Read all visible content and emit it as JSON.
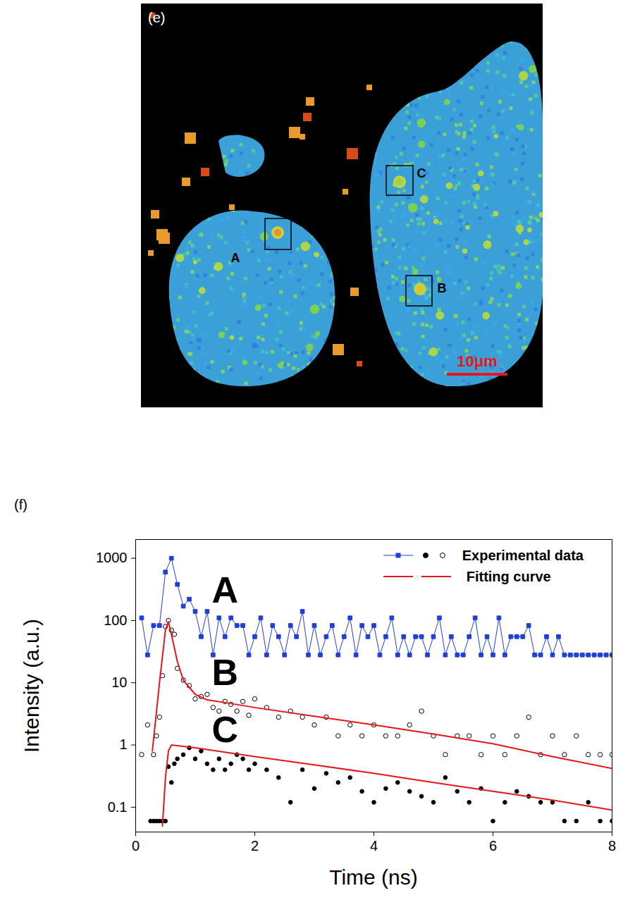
{
  "image_panel": {
    "label": "(e)",
    "regions": [
      "A",
      "B",
      "C"
    ],
    "scale_bar": "10μm"
  },
  "chart_data": {
    "type": "scatter",
    "panel_label": "(f)",
    "x_label": "Time (ns)",
    "y_label": "Intensity (a.u.)",
    "log": "y",
    "xlim": [
      0,
      8
    ],
    "ylim": [
      0.04,
      2000
    ],
    "xticks": [
      0,
      2,
      4,
      6,
      8
    ],
    "yticks": [
      0.1,
      1,
      10,
      100,
      1000
    ],
    "legend": "top-right",
    "annotations": [
      {
        "text": "A",
        "x": 1.5,
        "y": 300
      },
      {
        "text": "B",
        "x": 1.5,
        "y": 14
      },
      {
        "text": "C",
        "x": 1.5,
        "y": 1.7
      }
    ],
    "series": [
      {
        "name": "Experimental data",
        "color": "#1f3fd6",
        "marker": "square",
        "line_style": "solid",
        "x": [
          0.1,
          0.2,
          0.3,
          0.4,
          0.5,
          0.6,
          0.7,
          0.8,
          0.9,
          1.0,
          1.1,
          1.2,
          1.3,
          1.4,
          1.5,
          1.6,
          1.7,
          1.8,
          1.9,
          2.0,
          2.1,
          2.2,
          2.3,
          2.4,
          2.5,
          2.6,
          2.7,
          2.8,
          2.9,
          3.0,
          3.1,
          3.2,
          3.3,
          3.4,
          3.5,
          3.6,
          3.7,
          3.8,
          3.9,
          4.0,
          4.1,
          4.2,
          4.3,
          4.4,
          4.5,
          4.6,
          4.7,
          4.8,
          4.9,
          5.0,
          5.1,
          5.2,
          5.3,
          5.4,
          5.5,
          5.6,
          5.7,
          5.8,
          5.9,
          6.0,
          6.1,
          6.2,
          6.3,
          6.4,
          6.5,
          6.6,
          6.7,
          6.8,
          6.9,
          7.0,
          7.1,
          7.2,
          7.3,
          7.4,
          7.5,
          7.6,
          7.7,
          7.8,
          7.9,
          8.0
        ],
        "values": [
          110,
          28,
          83,
          83,
          600,
          1000,
          380,
          170,
          220,
          140,
          55,
          140,
          28,
          110,
          55,
          110,
          83,
          83,
          28,
          55,
          110,
          28,
          83,
          55,
          28,
          83,
          55,
          140,
          28,
          83,
          28,
          55,
          83,
          28,
          55,
          110,
          28,
          83,
          55,
          83,
          28,
          55,
          110,
          28,
          55,
          28,
          55,
          55,
          28,
          55,
          110,
          28,
          55,
          28,
          28,
          55,
          110,
          28,
          55,
          28,
          110,
          28,
          55,
          55,
          55,
          83,
          28,
          28,
          55,
          28,
          55,
          28,
          28,
          28,
          28,
          28,
          28,
          28,
          28,
          28
        ]
      },
      {
        "name": "Experimental data",
        "color": "#000000",
        "marker": "circle",
        "line_style": "none",
        "x": [
          0.25,
          0.3,
          0.35,
          0.4,
          0.45,
          0.5,
          0.55,
          0.6,
          0.65,
          0.7,
          0.8,
          0.9,
          1.0,
          1.1,
          1.2,
          1.3,
          1.4,
          1.5,
          1.6,
          1.7,
          1.8,
          1.9,
          2.0,
          2.2,
          2.4,
          2.6,
          2.8,
          3.0,
          3.2,
          3.4,
          3.6,
          3.8,
          4.0,
          4.2,
          4.4,
          4.6,
          4.8,
          5.0,
          5.2,
          5.4,
          5.6,
          5.8,
          6.0,
          6.2,
          6.4,
          6.6,
          6.8,
          7.0,
          7.2,
          7.4,
          7.6,
          7.8,
          8.0
        ],
        "values": [
          0.06,
          0.06,
          0.06,
          0.06,
          0.06,
          0.06,
          0.45,
          0.25,
          0.5,
          0.6,
          0.7,
          0.9,
          0.6,
          0.8,
          0.5,
          0.4,
          0.6,
          0.4,
          0.5,
          0.7,
          0.6,
          0.4,
          0.5,
          0.4,
          0.3,
          0.12,
          0.4,
          0.2,
          0.35,
          0.25,
          0.3,
          0.18,
          0.12,
          0.2,
          0.25,
          0.18,
          0.15,
          0.12,
          0.3,
          0.18,
          0.12,
          0.2,
          0.06,
          0.12,
          0.18,
          0.15,
          0.12,
          0.12,
          0.06,
          0.06,
          0.12,
          0.06,
          0.06
        ]
      },
      {
        "name": "Experimental data",
        "color": "#000000",
        "marker": "circle-open",
        "line_style": "none",
        "x": [
          0.1,
          0.2,
          0.3,
          0.35,
          0.4,
          0.45,
          0.5,
          0.55,
          0.6,
          0.65,
          0.7,
          0.8,
          0.9,
          1.0,
          1.1,
          1.2,
          1.3,
          1.4,
          1.5,
          1.6,
          1.7,
          1.8,
          1.9,
          2.0,
          2.2,
          2.4,
          2.6,
          2.8,
          3.0,
          3.2,
          3.4,
          3.6,
          3.8,
          4.0,
          4.2,
          4.4,
          4.6,
          4.8,
          5.0,
          5.2,
          5.4,
          5.6,
          5.8,
          6.0,
          6.2,
          6.4,
          6.6,
          6.8,
          7.0,
          7.2,
          7.4,
          7.6,
          7.8,
          8.0
        ],
        "values": [
          0.7,
          2.1,
          0.7,
          1.4,
          2.8,
          13,
          80,
          100,
          70,
          60,
          17,
          11,
          9,
          5.5,
          6,
          6.5,
          4,
          3.5,
          5,
          4.5,
          3.5,
          5,
          3,
          5.5,
          4,
          2.8,
          3.5,
          2.8,
          2.1,
          2.8,
          1.4,
          2.1,
          1.4,
          2.1,
          1.4,
          1.4,
          2.1,
          3.5,
          1.4,
          0.7,
          1.4,
          1.4,
          0.7,
          1.4,
          0.7,
          1.4,
          2.8,
          0.7,
          1.4,
          0.7,
          1.4,
          0.7,
          0.7,
          0.7
        ]
      },
      {
        "name": "Fitting curve",
        "color": "#e8161b",
        "marker": "none",
        "line_style": "solid",
        "x": [
          0.28,
          0.4,
          0.5,
          0.55,
          0.6,
          0.7,
          0.8,
          1.0,
          1.2,
          1.5,
          2,
          3,
          4,
          5,
          6,
          7,
          8
        ],
        "values": [
          0.8,
          10,
          70,
          95,
          60,
          22,
          11,
          6.5,
          5.3,
          4.8,
          4,
          2.9,
          2.1,
          1.5,
          1.05,
          0.65,
          0.42
        ]
      },
      {
        "name": "Fitting curve",
        "color": "#e8161b",
        "marker": "none",
        "line_style": "solid",
        "x": [
          0.45,
          0.5,
          0.55,
          0.6,
          1,
          2,
          3,
          4,
          5,
          6,
          7,
          8
        ],
        "values": [
          0.05,
          0.3,
          0.8,
          1.0,
          0.9,
          0.65,
          0.48,
          0.35,
          0.25,
          0.18,
          0.13,
          0.09
        ]
      }
    ]
  }
}
